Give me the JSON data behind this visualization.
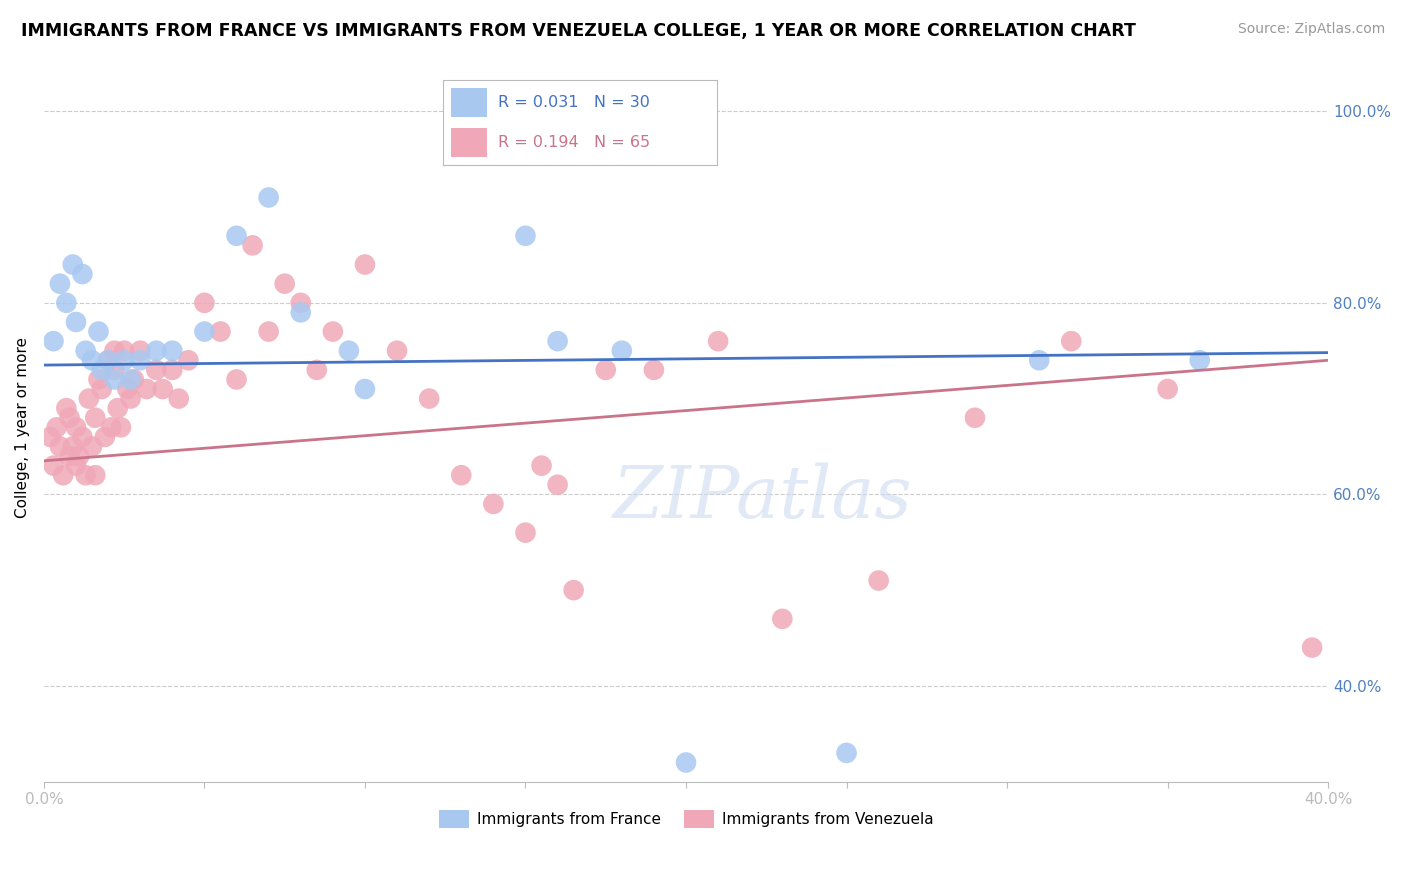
{
  "title": "IMMIGRANTS FROM FRANCE VS IMMIGRANTS FROM VENEZUELA COLLEGE, 1 YEAR OR MORE CORRELATION CHART",
  "source": "Source: ZipAtlas.com",
  "ylabel": "College, 1 year or more",
  "xlim": [
    0.0,
    0.4
  ],
  "ylim": [
    0.3,
    1.04
  ],
  "france_R": 0.031,
  "france_N": 30,
  "venezuela_R": 0.194,
  "venezuela_N": 65,
  "france_color": "#a8c8f0",
  "venezuela_color": "#f0a8b8",
  "france_line_color": "#4472C4",
  "venezuela_line_color": "#C9748A",
  "watermark": "ZIPatlas",
  "france_x": [
    0.003,
    0.005,
    0.007,
    0.009,
    0.01,
    0.012,
    0.013,
    0.015,
    0.017,
    0.018,
    0.02,
    0.022,
    0.025,
    0.027,
    0.03,
    0.035,
    0.04,
    0.05,
    0.06,
    0.07,
    0.08,
    0.095,
    0.1,
    0.15,
    0.16,
    0.18,
    0.2,
    0.25,
    0.31,
    0.36
  ],
  "france_y": [
    0.76,
    0.82,
    0.8,
    0.84,
    0.78,
    0.83,
    0.75,
    0.74,
    0.77,
    0.73,
    0.74,
    0.72,
    0.74,
    0.72,
    0.74,
    0.75,
    0.75,
    0.77,
    0.87,
    0.91,
    0.79,
    0.75,
    0.71,
    0.87,
    0.76,
    0.75,
    0.32,
    0.33,
    0.74,
    0.74
  ],
  "venezuela_x": [
    0.002,
    0.003,
    0.004,
    0.005,
    0.006,
    0.007,
    0.008,
    0.008,
    0.009,
    0.01,
    0.01,
    0.011,
    0.012,
    0.013,
    0.014,
    0.015,
    0.016,
    0.016,
    0.017,
    0.018,
    0.019,
    0.02,
    0.021,
    0.022,
    0.022,
    0.023,
    0.024,
    0.025,
    0.026,
    0.027,
    0.028,
    0.03,
    0.032,
    0.035,
    0.037,
    0.04,
    0.042,
    0.045,
    0.05,
    0.055,
    0.06,
    0.065,
    0.07,
    0.075,
    0.08,
    0.085,
    0.09,
    0.1,
    0.11,
    0.12,
    0.13,
    0.14,
    0.15,
    0.155,
    0.16,
    0.165,
    0.175,
    0.19,
    0.21,
    0.23,
    0.26,
    0.29,
    0.32,
    0.35,
    0.395
  ],
  "venezuela_y": [
    0.66,
    0.63,
    0.67,
    0.65,
    0.62,
    0.69,
    0.64,
    0.68,
    0.65,
    0.63,
    0.67,
    0.64,
    0.66,
    0.62,
    0.7,
    0.65,
    0.62,
    0.68,
    0.72,
    0.71,
    0.66,
    0.74,
    0.67,
    0.75,
    0.73,
    0.69,
    0.67,
    0.75,
    0.71,
    0.7,
    0.72,
    0.75,
    0.71,
    0.73,
    0.71,
    0.73,
    0.7,
    0.74,
    0.8,
    0.77,
    0.72,
    0.86,
    0.77,
    0.82,
    0.8,
    0.73,
    0.77,
    0.84,
    0.75,
    0.7,
    0.62,
    0.59,
    0.56,
    0.63,
    0.61,
    0.5,
    0.73,
    0.73,
    0.76,
    0.47,
    0.51,
    0.68,
    0.76,
    0.71,
    0.44
  ],
  "france_line_x0": 0.0,
  "france_line_y0": 0.735,
  "france_line_x1": 0.4,
  "france_line_y1": 0.748,
  "venezuela_line_x0": 0.0,
  "venezuela_line_y0": 0.635,
  "venezuela_line_x1": 0.4,
  "venezuela_line_y1": 0.74
}
